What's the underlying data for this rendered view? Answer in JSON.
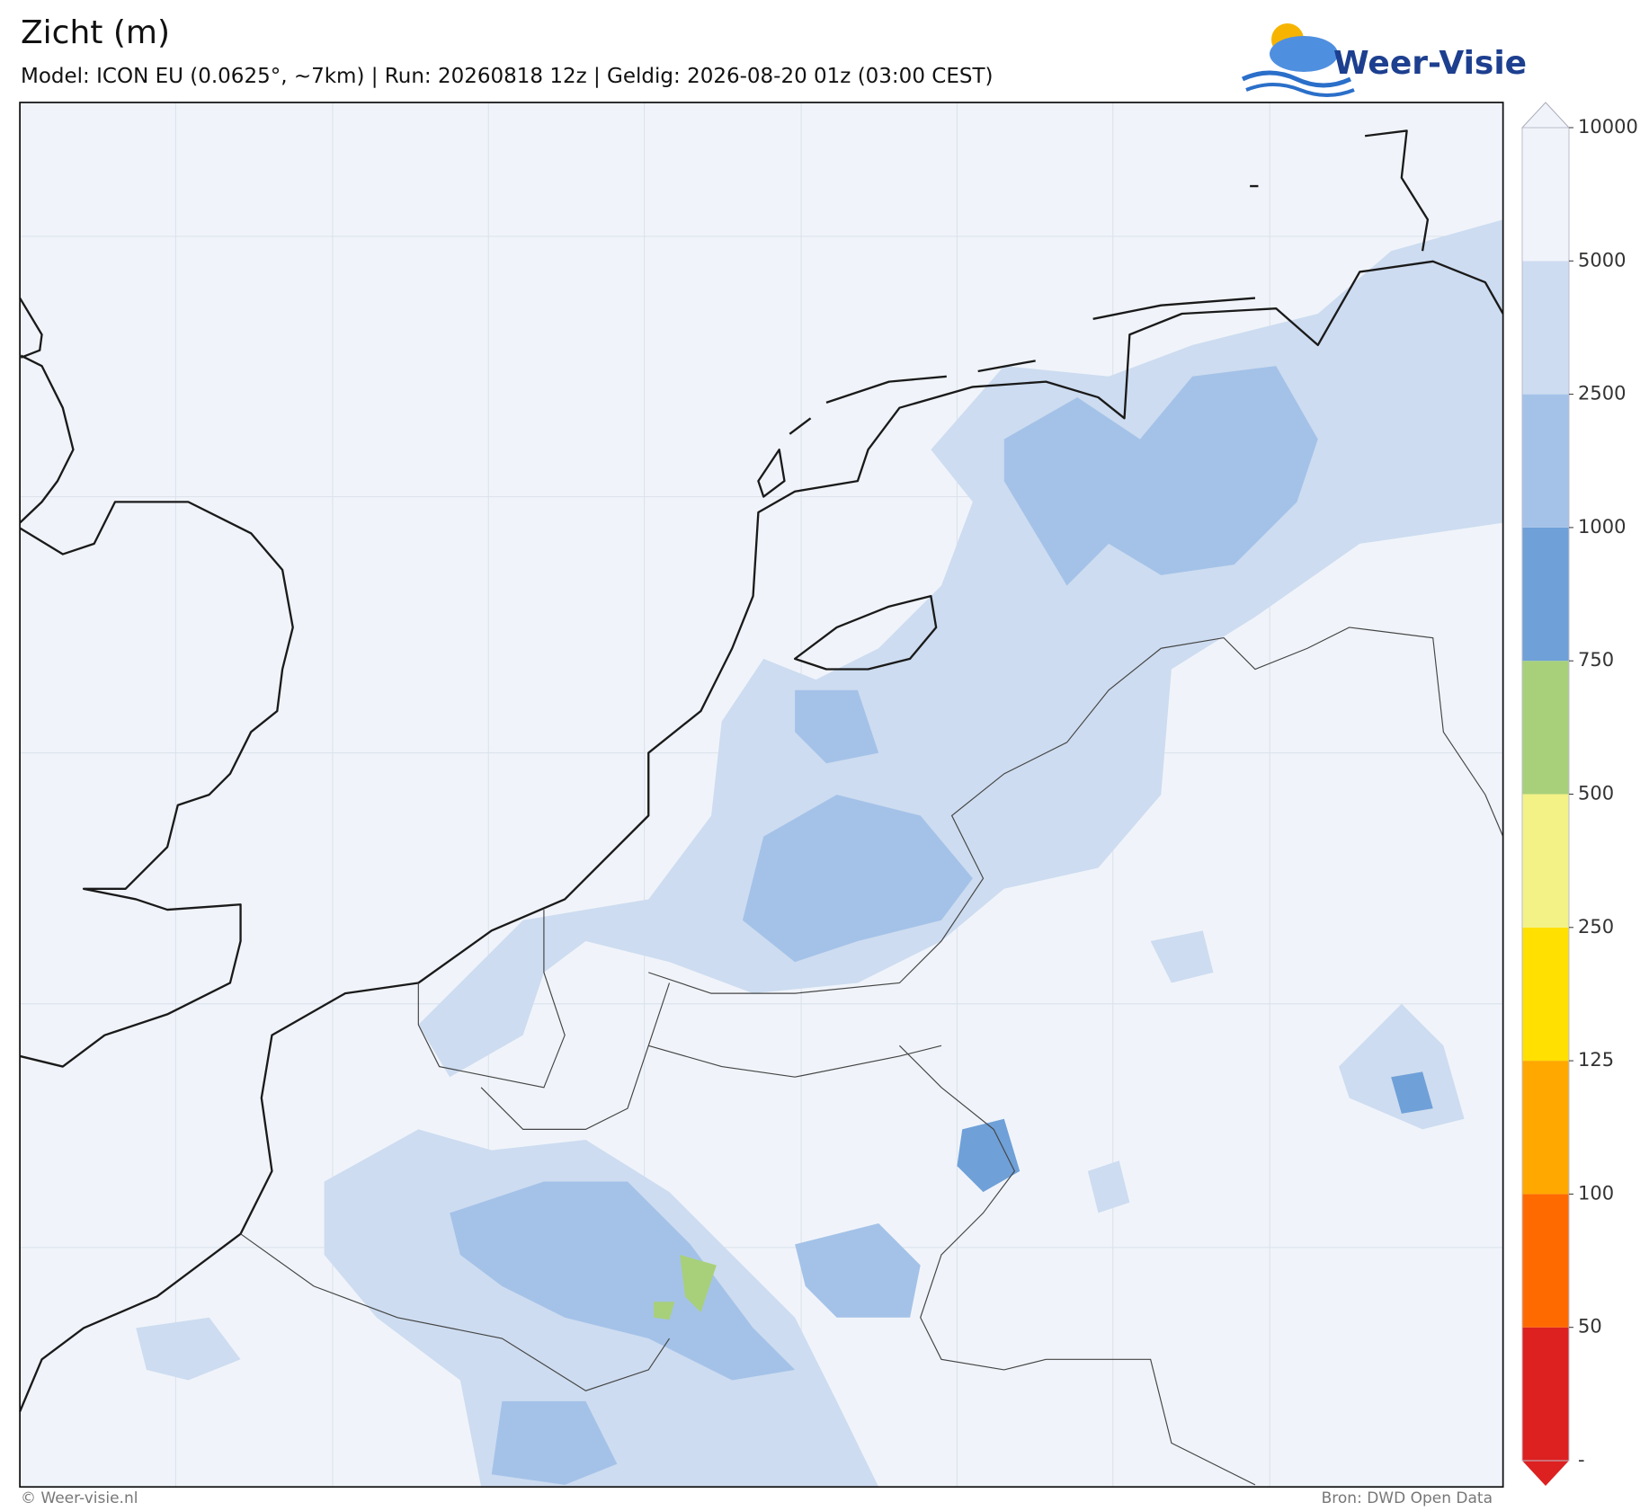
{
  "header": {
    "title": "Zicht (m)",
    "subtitle": "Model: ICON EU (0.0625°, ~7km)  |  Run: 20260818 12z  |  Geldig: 2026-08-20 01z (03:00 CEST)",
    "logo": "Weer-Visie"
  },
  "colorbar": {
    "ticks": [
      50,
      100,
      125,
      250,
      500,
      750,
      1000,
      2500,
      5000,
      10000
    ],
    "bottom_label": "-",
    "colors": [
      "#dd2020",
      "#ff6a00",
      "#ffa800",
      "#ffe000",
      "#f3f287",
      "#a8d07a",
      "#6fa0d8",
      "#a4c2e8",
      "#cddcf0",
      "#f0f4fa"
    ]
  },
  "footer": {
    "left": "© Weer-visie.nl",
    "right": "Bron: DWD Open Data"
  }
}
